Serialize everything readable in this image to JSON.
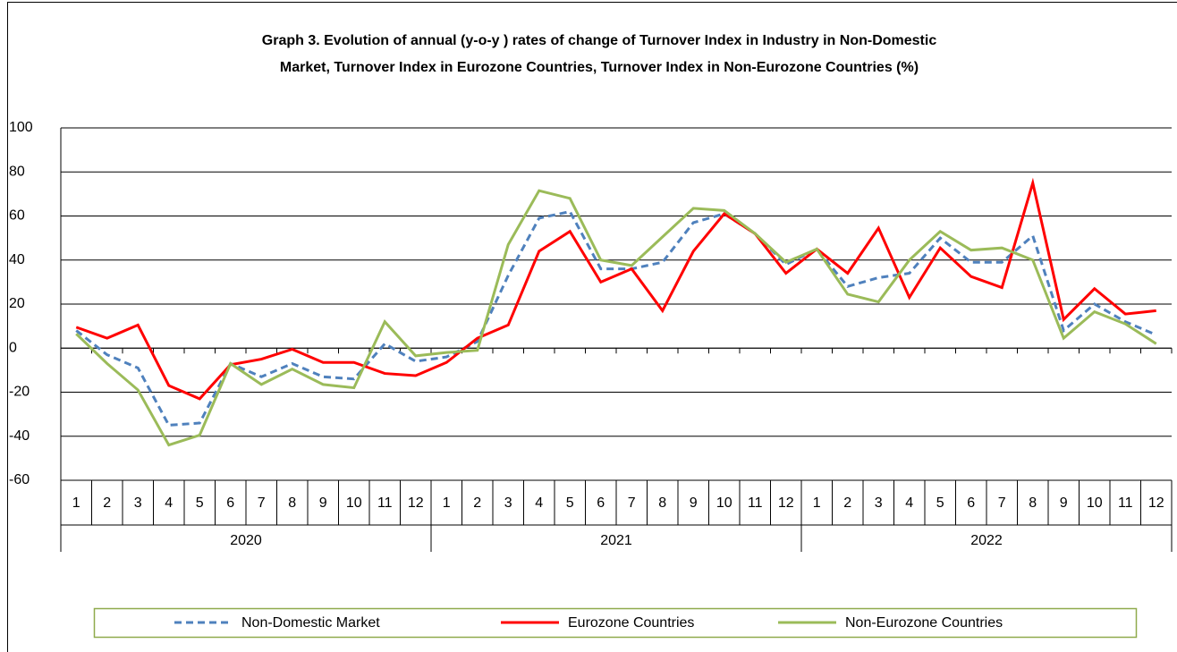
{
  "chart_data": {
    "type": "line",
    "title": [
      "Graph 3. Evolution  of annual  (y-o-y ) rates of change of Turnover Index   in Industry in Non-Domestic",
      "Market, Turnover  Index  in Eurozone Countries,  Turnover  Index  in Non-Eurozone  Countries  (%)"
    ],
    "categories": [
      "1",
      "2",
      "3",
      "4",
      "5",
      "6",
      "7",
      "8",
      "9",
      "10",
      "11",
      "12",
      "1",
      "2",
      "3",
      "4",
      "5",
      "6",
      "7",
      "8",
      "9",
      "10",
      "11",
      "12",
      "1",
      "2",
      "3",
      "4",
      "5",
      "6",
      "7",
      "8",
      "9",
      "10",
      "11",
      "12"
    ],
    "year_groups": [
      "2020",
      "2021",
      "2022"
    ],
    "ylim": [
      -60,
      100
    ],
    "yticks": [
      -60,
      -40,
      -20,
      0,
      20,
      40,
      60,
      80,
      100
    ],
    "grid": true,
    "legend": "bottom",
    "series": [
      {
        "name": "Non-Domestic Market",
        "color": "#4f81bd",
        "dash": true,
        "values": [
          8,
          -3,
          -9,
          -35,
          -34,
          -7,
          -13,
          -7,
          -13,
          -14,
          2,
          -6,
          -4,
          3,
          33,
          59,
          62,
          36,
          36,
          39,
          57,
          61,
          52,
          38,
          45,
          28,
          32,
          34,
          50,
          39,
          39,
          51,
          8,
          20,
          12,
          6
        ]
      },
      {
        "name": "Eurozone Countries",
        "color": "#ff0000",
        "values": [
          9.5,
          4.5,
          10.5,
          -17,
          -23,
          -7.5,
          -5,
          -0.5,
          -6.5,
          -6.5,
          -11.5,
          -12.5,
          -6.5,
          4.5,
          10.5,
          44,
          53,
          30,
          36,
          17,
          44,
          61,
          52,
          34,
          45,
          34,
          54.5,
          23,
          45.5,
          32.5,
          27.5,
          75,
          13,
          27,
          15.5,
          17
        ]
      },
      {
        "name": "Non-Eurozone Countries",
        "color": "#9bbb59",
        "values": [
          6.5,
          -7,
          -19,
          -44,
          -39.5,
          -7,
          -16.5,
          -9.5,
          -16.5,
          -18,
          12,
          -3.5,
          -2,
          -1,
          47,
          71.5,
          68,
          40,
          37.5,
          50.5,
          63.5,
          62.5,
          52,
          39,
          45,
          24.5,
          21,
          40,
          53,
          44.5,
          45.5,
          40,
          4.5,
          16.5,
          11,
          2
        ]
      }
    ]
  }
}
